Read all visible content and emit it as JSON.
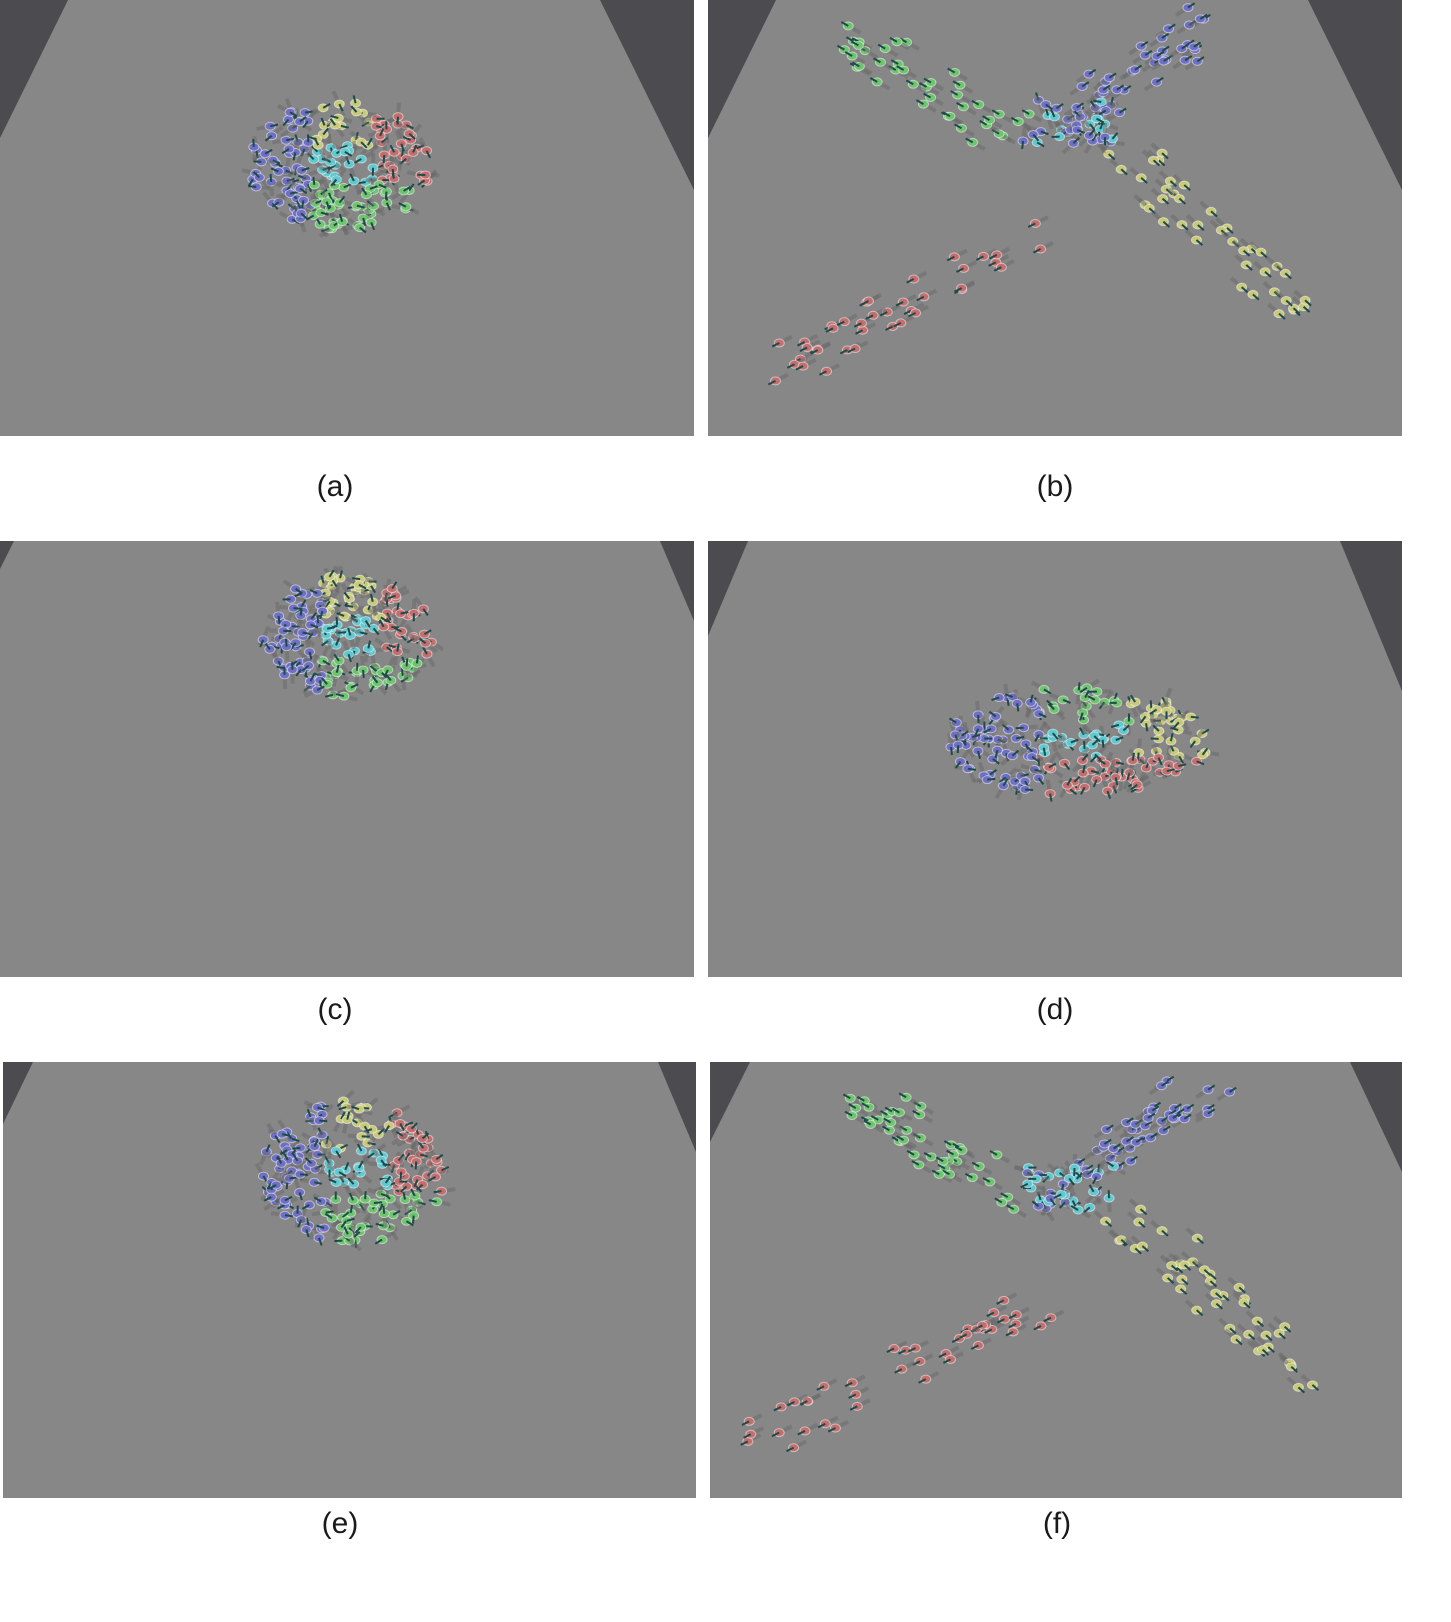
{
  "figure": {
    "panels": [
      {
        "id": "a",
        "caption": "(a)",
        "state": "clustered",
        "agent_colors": [
          "#c9c97a",
          "#6f6fc4",
          "#6fc46f",
          "#c46f6f",
          "#5fc8d0"
        ]
      },
      {
        "id": "b",
        "caption": "(b)",
        "state": "dispersed",
        "agent_colors": [
          "#6fc46f",
          "#6f6fc4",
          "#c46f6f",
          "#c9c97a",
          "#5fc8d0"
        ]
      },
      {
        "id": "c",
        "caption": "(c)",
        "state": "clustered",
        "agent_colors": [
          "#c9c97a",
          "#6f6fc4",
          "#6fc46f",
          "#c46f6f",
          "#5fc8d0"
        ]
      },
      {
        "id": "d",
        "caption": "(d)",
        "state": "dispersed",
        "agent_colors": [
          "#6fc46f",
          "#6f6fc4",
          "#c46f6f",
          "#c9c97a",
          "#5fc8d0"
        ]
      },
      {
        "id": "e",
        "caption": "(e)",
        "state": "clustered",
        "agent_colors": [
          "#c9c97a",
          "#6f6fc4",
          "#6fc46f",
          "#c46f6f",
          "#5fc8d0"
        ]
      },
      {
        "id": "f",
        "caption": "(f)",
        "state": "dispersed",
        "agent_colors": [
          "#6fc46f",
          "#6f6fc4",
          "#c46f6f",
          "#c9c97a",
          "#5fc8d0"
        ]
      }
    ],
    "floor_color": "#878787",
    "background_color": "#4b4b50"
  }
}
